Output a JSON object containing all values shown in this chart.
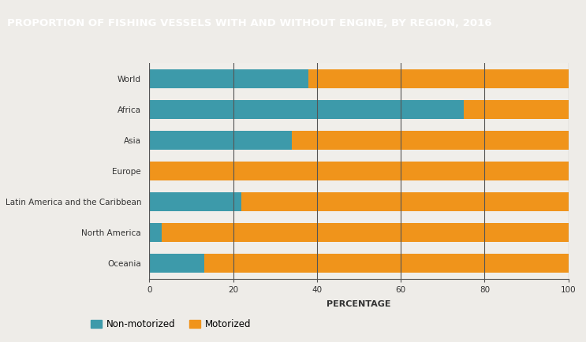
{
  "title": "PROPORTION OF FISHING VESSELS WITH AND WITHOUT ENGINE, BY REGION, 2016",
  "categories": [
    "World",
    "Africa",
    "Asia",
    "Europe",
    "Latin America and the Caribbean",
    "North America",
    "Oceania"
  ],
  "non_motorized": [
    38,
    75,
    34,
    0,
    22,
    3,
    13
  ],
  "motorized": [
    62,
    25,
    66,
    100,
    78,
    97,
    87
  ],
  "color_non_motorized": "#3d9aaa",
  "color_motorized": "#f0941b",
  "xlabel": "PERCENTAGE",
  "xlim": [
    0,
    100
  ],
  "xticks": [
    0,
    20,
    40,
    60,
    80,
    100
  ],
  "background_color": "#eeece8",
  "chart_bg_color": "#e8e6e2",
  "title_bg_color": "#7a7a7a",
  "title_text_color": "#ffffff",
  "bar_height": 0.62,
  "grid_color": "#555555",
  "label_fontsize": 7.5,
  "xlabel_fontsize": 8,
  "title_fontsize": 9.5,
  "tick_fontsize": 7.5
}
